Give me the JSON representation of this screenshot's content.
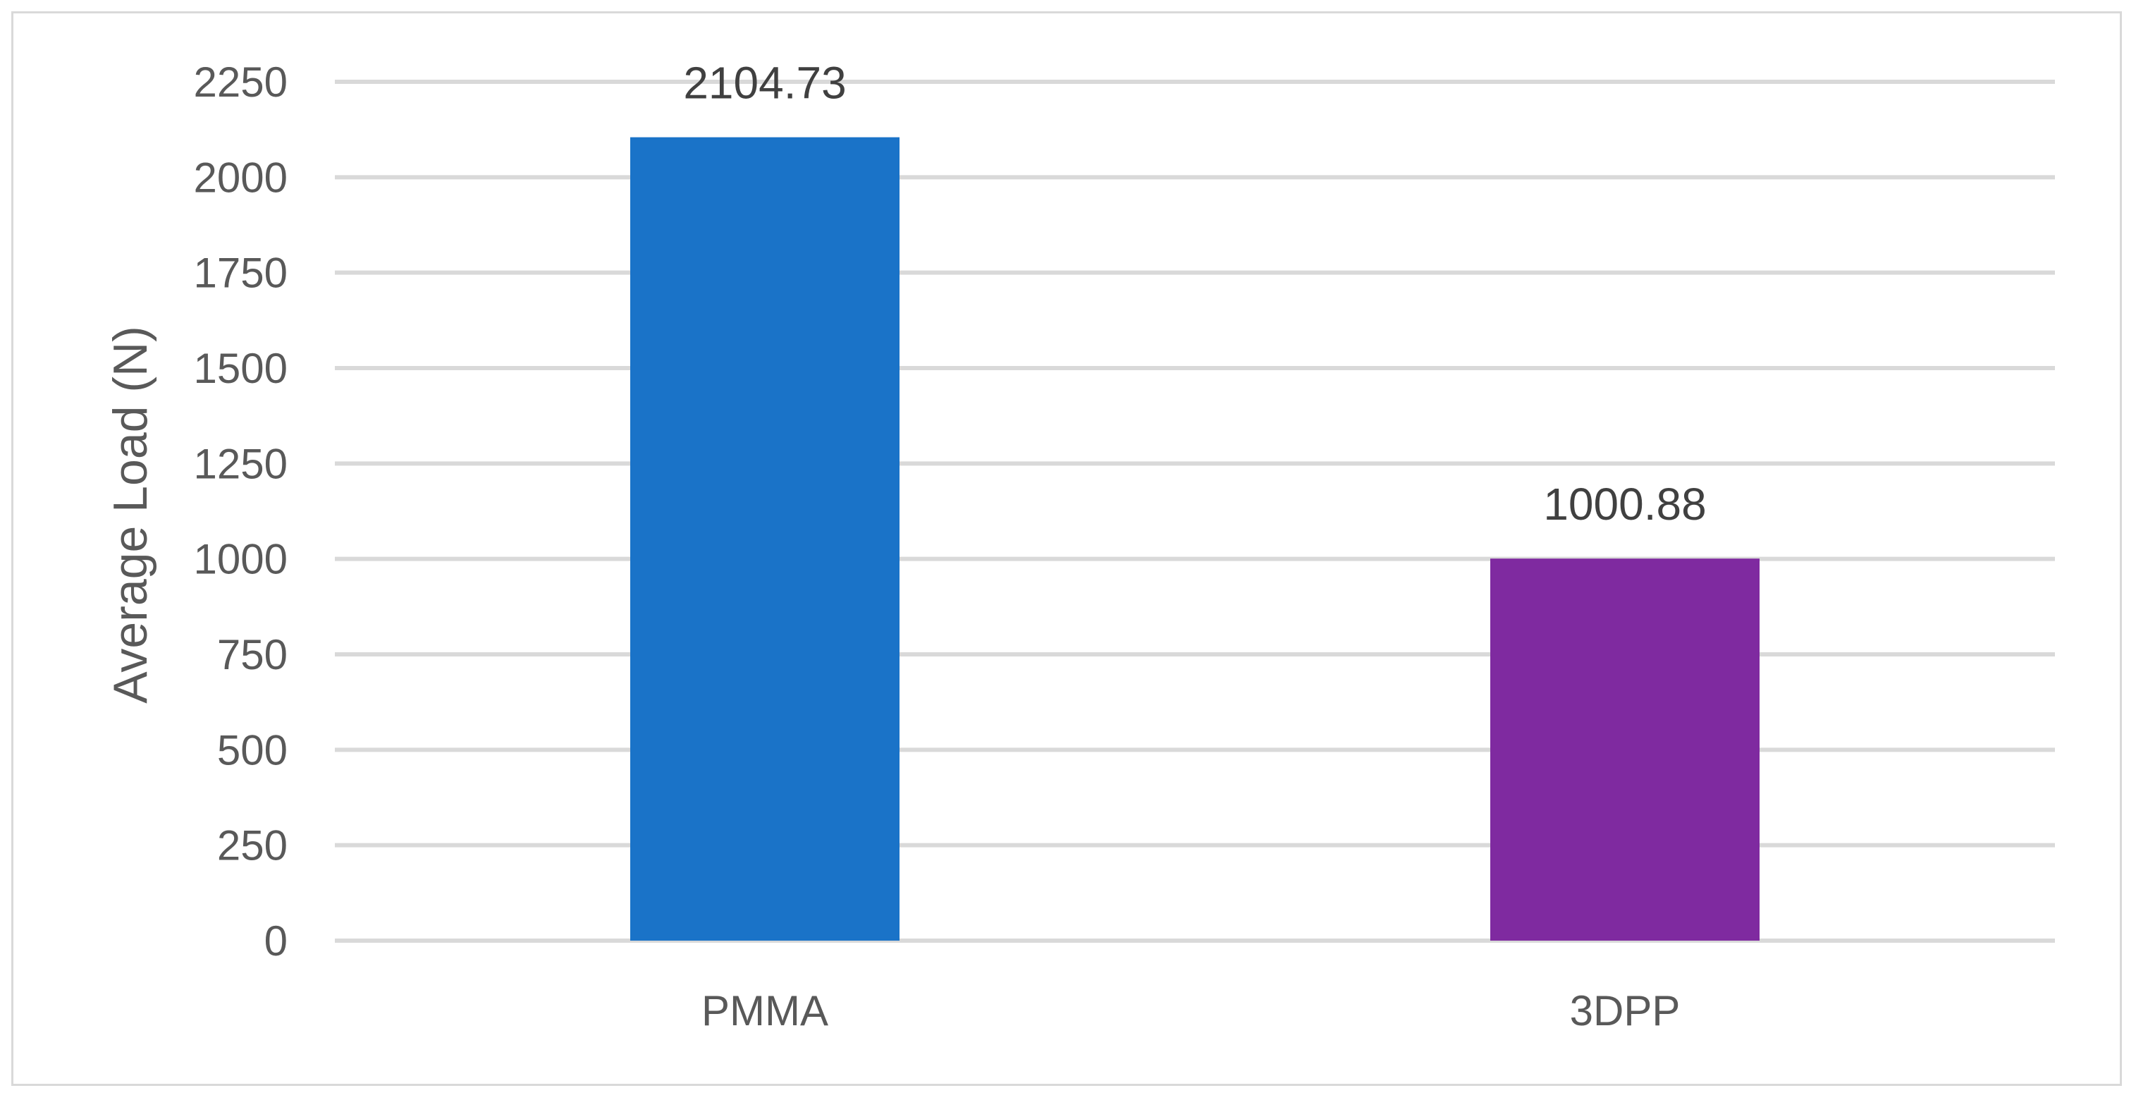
{
  "chart_data": {
    "type": "bar",
    "categories": [
      "PMMA",
      "3DPP"
    ],
    "values": [
      2104.73,
      1000.88
    ],
    "value_labels": [
      "2104.73",
      "1000.88"
    ],
    "title": "",
    "xlabel": "",
    "ylabel": "Average Load (N)",
    "ylim": [
      0,
      2250
    ],
    "yticks": [
      0,
      250,
      500,
      750,
      1000,
      1250,
      1500,
      1750,
      2000,
      2250
    ],
    "grid": true,
    "legend": "none",
    "colors": [
      "#1a73c8",
      "#7f2aa0"
    ]
  }
}
